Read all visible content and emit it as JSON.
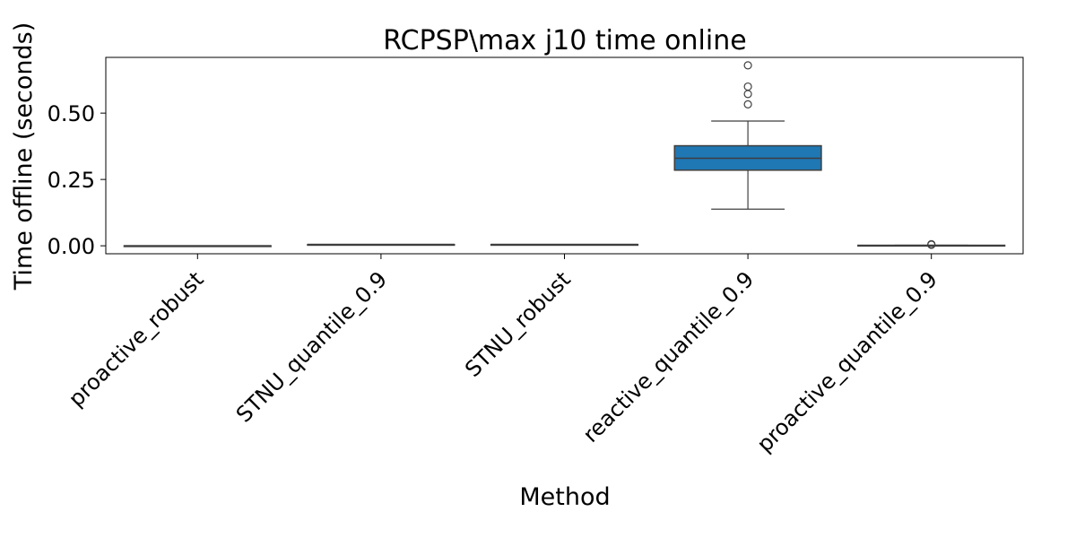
{
  "chart_data": {
    "type": "box",
    "title": "RCPSP\\max j10 time online",
    "xlabel": "Method",
    "ylabel": "Time offline (seconds)",
    "ylim": [
      -0.03,
      0.71
    ],
    "yticks": [
      0.0,
      0.25,
      0.5
    ],
    "ytick_labels": [
      "0.00",
      "0.25",
      "0.50"
    ],
    "grid": false,
    "box_color": "#1f77b4",
    "categories": [
      "proactive_robust",
      "STNU_quantile_0.9",
      "STNU_robust",
      "reactive_quantile_0.9",
      "proactive_quantile_0.9"
    ],
    "boxes": [
      {
        "q1": 0.0,
        "median": 0.0,
        "q3": 0.0,
        "whisker_low": 0.0,
        "whisker_high": 0.0,
        "outliers": []
      },
      {
        "q1": 0.005,
        "median": 0.005,
        "q3": 0.005,
        "whisker_low": 0.005,
        "whisker_high": 0.005,
        "outliers": []
      },
      {
        "q1": 0.005,
        "median": 0.005,
        "q3": 0.005,
        "whisker_low": 0.005,
        "whisker_high": 0.005,
        "outliers": []
      },
      {
        "q1": 0.285,
        "median": 0.33,
        "q3": 0.377,
        "whisker_low": 0.138,
        "whisker_high": 0.47,
        "outliers": [
          0.533,
          0.572,
          0.6,
          0.68
        ]
      },
      {
        "q1": 0.0,
        "median": 0.001,
        "q3": 0.002,
        "whisker_low": 0.0,
        "whisker_high": 0.002,
        "outliers": [
          0.004,
          0.006
        ]
      }
    ]
  }
}
